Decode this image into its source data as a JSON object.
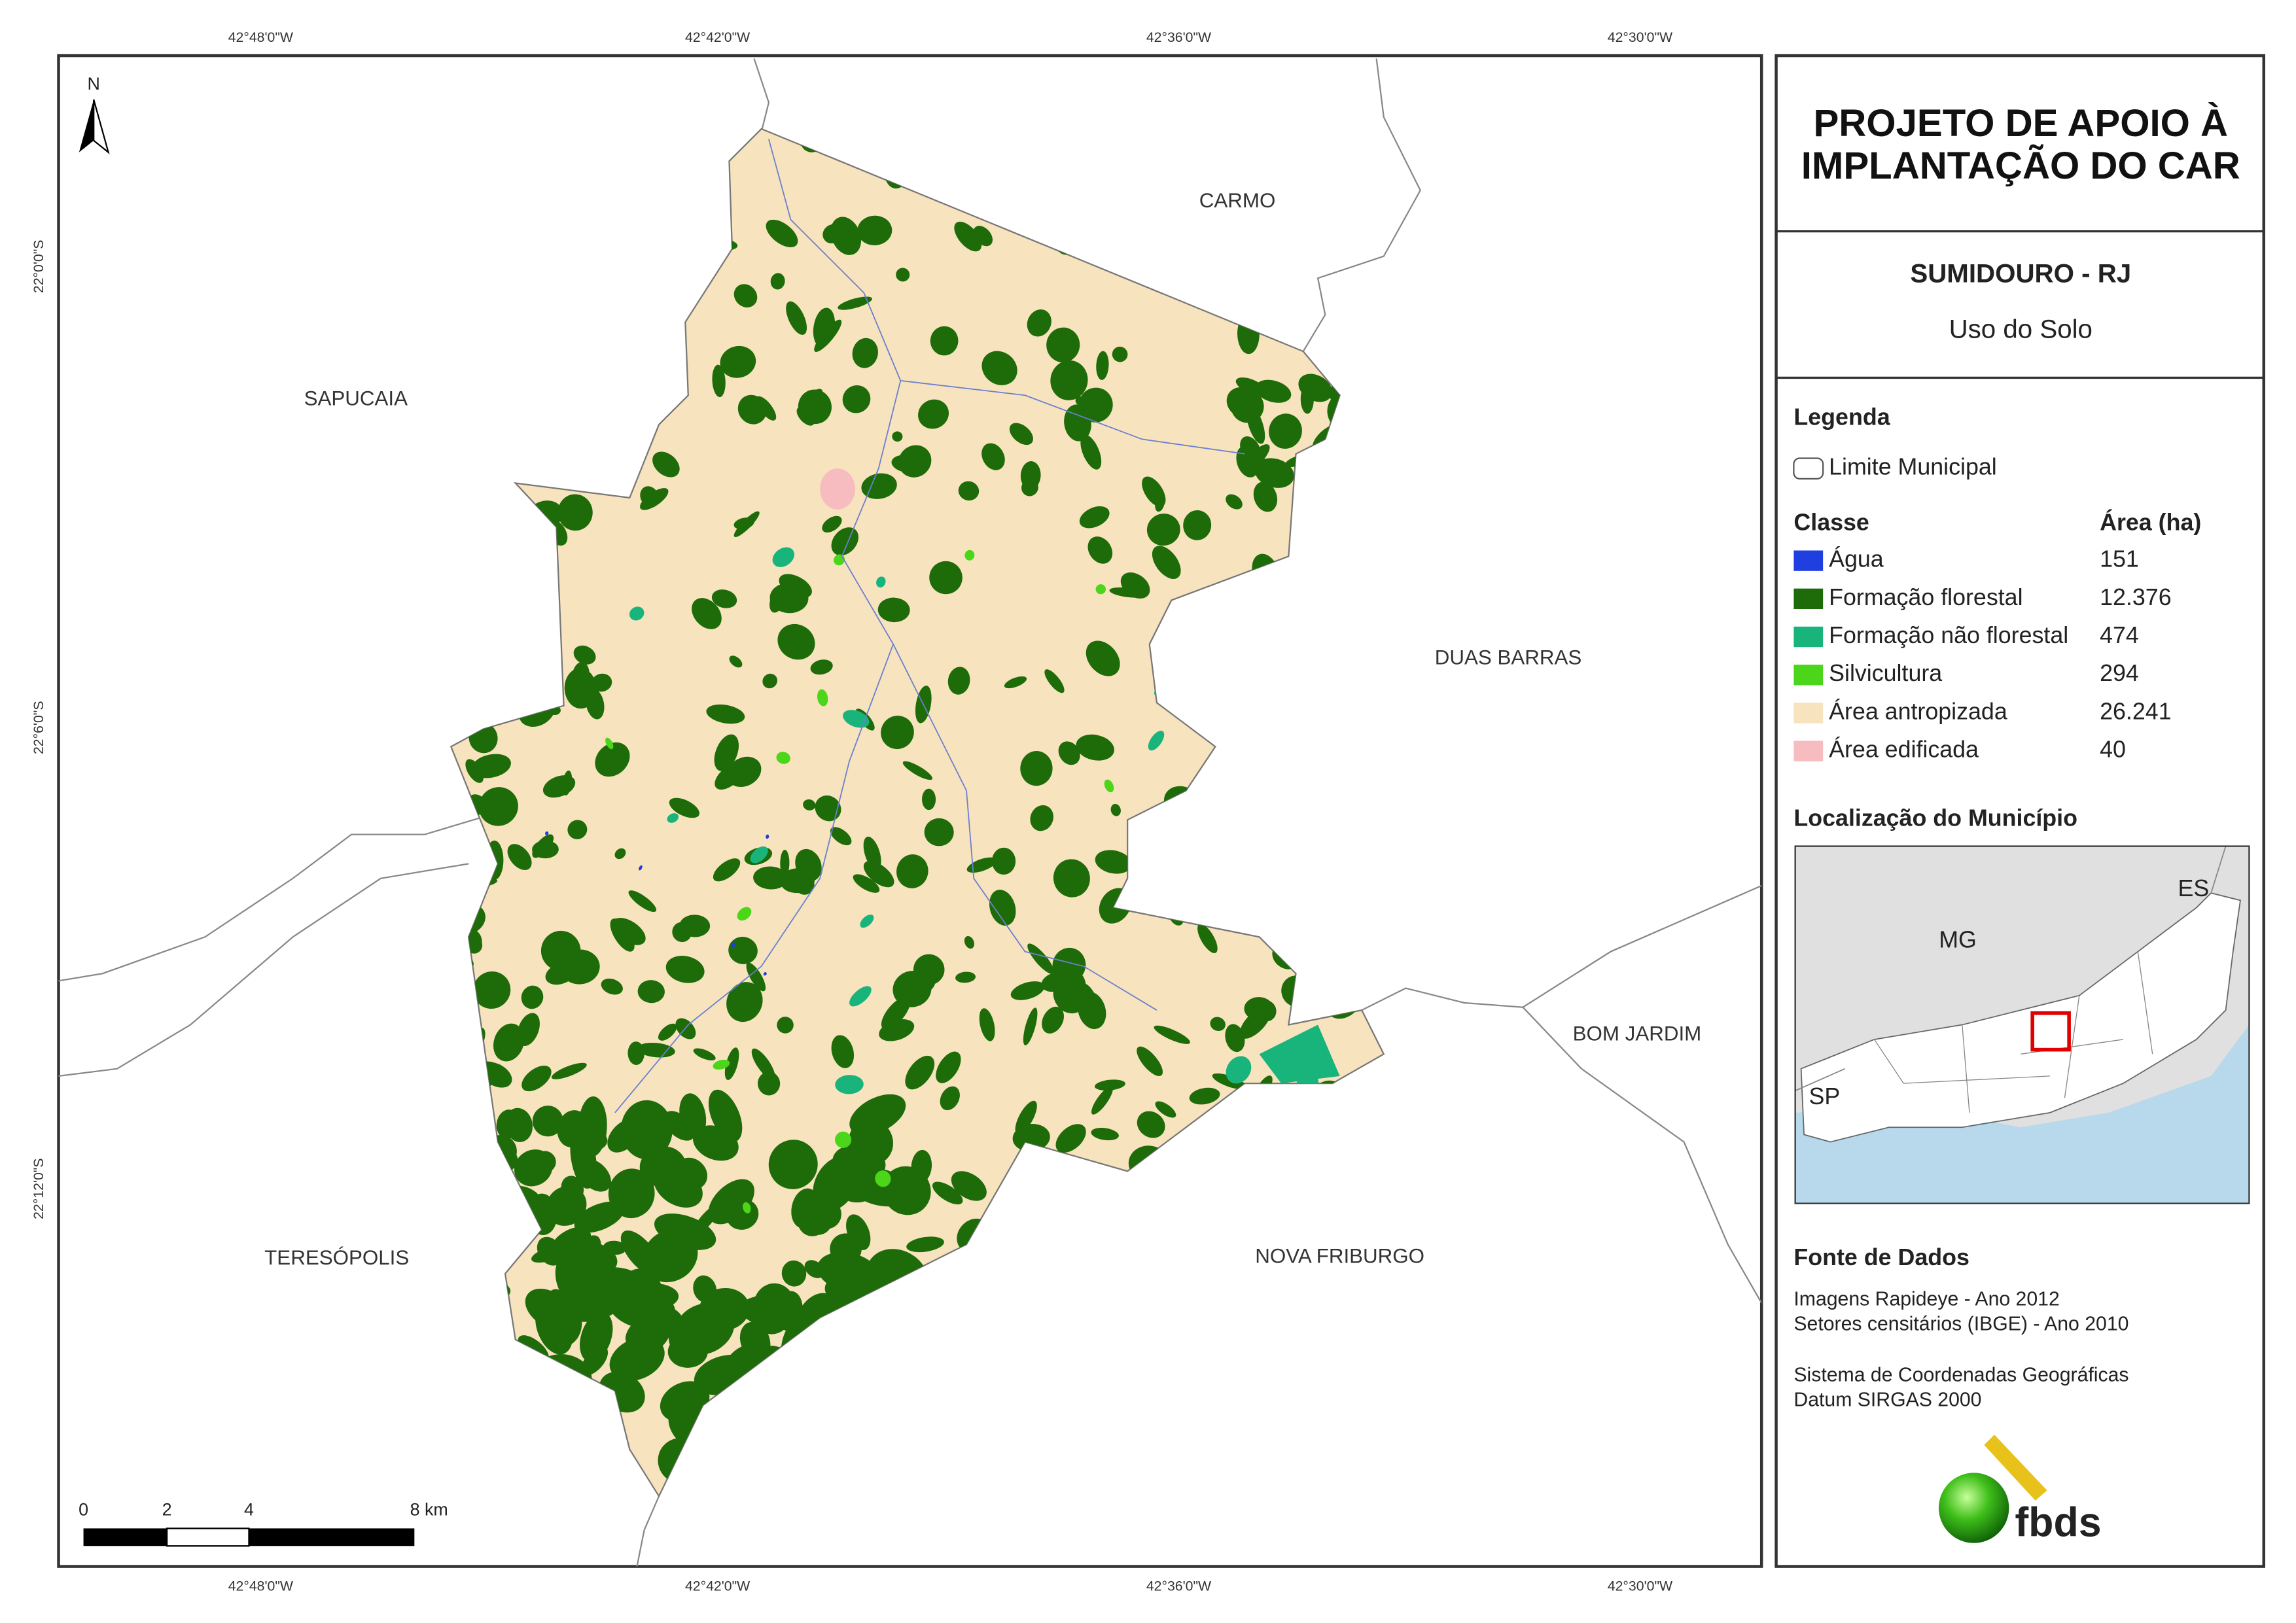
{
  "frame": {
    "top_labels": [
      "42°48'0\"W",
      "42°42'0\"W",
      "42°36'0\"W",
      "42°30'0\"W"
    ],
    "bottom_labels": [
      "42°48'0\"W",
      "42°42'0\"W",
      "42°36'0\"W",
      "42°30'0\"W"
    ],
    "left_labels": [
      "22°0'0\"S",
      "22°6'0\"S",
      "22°12'0\"S"
    ]
  },
  "map": {
    "north": "N",
    "places": [
      "CARMO",
      "SAPUCAIA",
      "DUAS BARRAS",
      "BOM JARDIM",
      "TERESÓPOLIS",
      "NOVA FRIBURGO"
    ],
    "scale_labels": [
      "0",
      "2",
      "4",
      "8 km"
    ]
  },
  "panel": {
    "title": [
      "PROJETO DE APOIO À",
      "IMPLANTAÇÃO DO CAR"
    ],
    "subtitle": "SUMIDOURO - RJ",
    "theme": "Uso do Solo",
    "legend_heading": "Legenda",
    "boundary_label": "Limite Municipal",
    "class_heading": "Classe",
    "area_heading": "Área (ha)",
    "classes": [
      {
        "name": "Água",
        "area": "151",
        "color": "#1f3fe0"
      },
      {
        "name": "Formação florestal",
        "area": "12.376",
        "color": "#1e6b0a"
      },
      {
        "name": "Formação não florestal",
        "area": "474",
        "color": "#19b37c"
      },
      {
        "name": "Silvicultura",
        "area": "294",
        "color": "#4cd61a"
      },
      {
        "name": "Área antropizada",
        "area": "26.241",
        "color": "#f7e3bd"
      },
      {
        "name": "Área edificada",
        "area": "40",
        "color": "#f7bcc0"
      }
    ],
    "location_heading": "Localização do Município",
    "inset_labels": [
      "MG",
      "ES",
      "SP"
    ],
    "sources_heading": "Fonte de Dados",
    "sources": [
      "Imagens Rapideye - Ano 2012",
      "Setores censitários (IBGE) - Ano 2010",
      "Sistema de Coordenadas Geográficas",
      "Datum SIRGAS 2000"
    ],
    "logo": "fbds"
  }
}
